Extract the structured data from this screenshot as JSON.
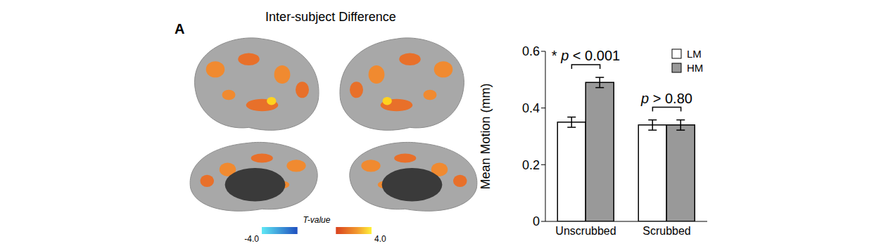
{
  "panel_label": "A",
  "brain_map": {
    "title": "Inter-subject Difference",
    "colorbar": {
      "label": "T-value",
      "range": [
        -4,
        4
      ],
      "ticks": [
        {
          "value": -4,
          "label": "-4.0"
        },
        {
          "value": 4,
          "label": "4.0"
        }
      ]
    }
  },
  "chart_data": {
    "type": "bar",
    "y_label": "Mean Motion (mm)",
    "categories": [
      "Unscrubbed",
      "Scrubbed"
    ],
    "series": [
      {
        "name": "LM",
        "color": "#ffffff",
        "values": [
          0.35,
          0.34
        ],
        "errors": [
          0.018,
          0.018
        ]
      },
      {
        "name": "HM",
        "color": "#999999",
        "values": [
          0.49,
          0.34
        ],
        "errors": [
          0.018,
          0.018
        ]
      }
    ],
    "ylim": [
      0,
      0.6
    ],
    "yticks": [
      0,
      0.2,
      0.4,
      0.6
    ],
    "legend": "upper right",
    "annotations": [
      "* p < 0.001",
      "p > 0.80"
    ]
  }
}
